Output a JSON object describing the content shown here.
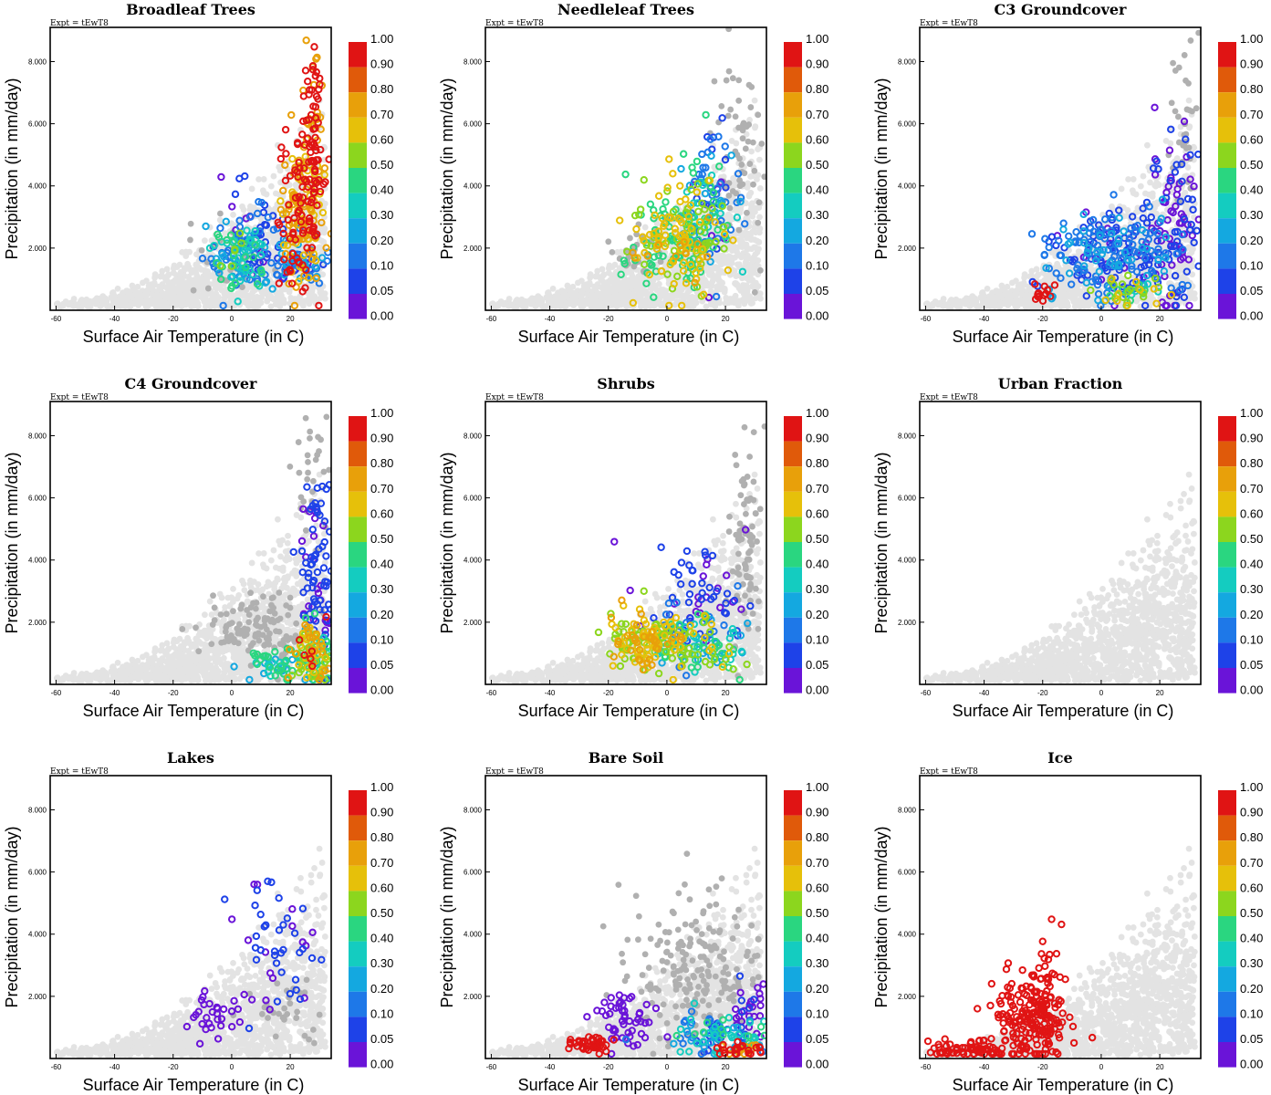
{
  "chart_data": {
    "type": "scatter",
    "expt_label": "Expt = tEwT8",
    "xlabel": "Surface Air Temperature (in C)",
    "ylabel": "Precipitation (in mm/day)",
    "xlim": [
      -62,
      34
    ],
    "ylim": [
      0,
      9.1
    ],
    "xticks": [
      -60,
      -40,
      -20,
      0,
      20
    ],
    "yticks": [
      2.0,
      4.0,
      6.0,
      8.0
    ],
    "ytick_labels": [
      "2.000",
      "4.000",
      "6.000",
      "8.000"
    ],
    "colorbar": {
      "levels": [
        "0.00",
        "0.05",
        "0.10",
        "0.20",
        "0.30",
        "0.40",
        "0.50",
        "0.60",
        "0.70",
        "0.80",
        "0.90",
        "1.00"
      ],
      "colors": [
        "#b4b4b4",
        "#6a14d8",
        "#1e42e8",
        "#1e78e8",
        "#14a8e0",
        "#14ccc0",
        "#2ad680",
        "#8cd61e",
        "#e6c00a",
        "#e8a00a",
        "#e05a0a",
        "#e01414"
      ]
    },
    "panels": [
      {
        "title": "Broadleaf Trees",
        "regions": [
          {
            "cx": 24,
            "cy": 3.2,
            "sx": 4,
            "sy": 1.3,
            "n": 210,
            "f": [
              0.72,
              1.0
            ]
          },
          {
            "cx": 28,
            "cy": 6.2,
            "sx": 2,
            "sy": 1.2,
            "n": 60,
            "f": [
              0.85,
              1.0
            ]
          },
          {
            "cx": 22,
            "cy": 1.6,
            "sx": 7,
            "sy": 0.4,
            "n": 70,
            "f": [
              0.08,
              0.4
            ]
          },
          {
            "cx": 3,
            "cy": 1.6,
            "sx": 5,
            "sy": 0.5,
            "n": 110,
            "f": [
              0.2,
              0.62
            ]
          },
          {
            "cx": 8,
            "cy": 2.6,
            "sx": 6,
            "sy": 0.8,
            "n": 50,
            "f": [
              0.05,
              0.3
            ]
          },
          {
            "cx": 0,
            "cy": 1.8,
            "sx": 6,
            "sy": 0.6,
            "n": 30,
            "f": [
              0.0,
              0.04
            ]
          }
        ]
      },
      {
        "title": "Needleleaf Trees",
        "regions": [
          {
            "cx": 3,
            "cy": 2.2,
            "sx": 7,
            "sy": 0.9,
            "n": 200,
            "f": [
              0.5,
              0.82
            ]
          },
          {
            "cx": 12,
            "cy": 3.2,
            "sx": 6,
            "sy": 1.0,
            "n": 80,
            "f": [
              0.25,
              0.78
            ]
          },
          {
            "cx": 16,
            "cy": 3.6,
            "sx": 4,
            "sy": 1.2,
            "n": 50,
            "f": [
              0.05,
              0.3
            ]
          },
          {
            "cx": 26,
            "cy": 4.8,
            "sx": 4,
            "sy": 1.6,
            "n": 60,
            "f": [
              0.0,
              0.04
            ]
          },
          {
            "cx": -10,
            "cy": 1.9,
            "sx": 4,
            "sy": 0.4,
            "n": 30,
            "f": [
              0.0,
              0.04
            ]
          }
        ]
      },
      {
        "title": "C3 Groundcover",
        "regions": [
          {
            "cx": 5,
            "cy": 1.8,
            "sx": 12,
            "sy": 0.7,
            "n": 270,
            "f": [
              0.08,
              0.35
            ]
          },
          {
            "cx": 24,
            "cy": 3.2,
            "sx": 5,
            "sy": 1.5,
            "n": 90,
            "f": [
              0.05,
              0.12
            ]
          },
          {
            "cx": 10,
            "cy": 0.55,
            "sx": 6,
            "sy": 0.25,
            "n": 40,
            "f": [
              0.4,
              0.82
            ]
          },
          {
            "cx": -20,
            "cy": 0.6,
            "sx": 2,
            "sy": 0.15,
            "n": 14,
            "f": [
              0.92,
              1.0
            ]
          },
          {
            "cx": 28,
            "cy": 5.5,
            "sx": 3,
            "sy": 1.5,
            "n": 40,
            "f": [
              0.0,
              0.04
            ]
          }
        ]
      },
      {
        "title": "C4 Groundcover",
        "regions": [
          {
            "cx": 28,
            "cy": 1.0,
            "sx": 4,
            "sy": 0.5,
            "n": 130,
            "f": [
              0.35,
              0.95
            ]
          },
          {
            "cx": 29,
            "cy": 3.5,
            "sx": 3,
            "sy": 1.6,
            "n": 90,
            "f": [
              0.05,
              0.2
            ]
          },
          {
            "cx": 15,
            "cy": 0.6,
            "sx": 6,
            "sy": 0.3,
            "n": 50,
            "f": [
              0.3,
              0.6
            ]
          },
          {
            "cx": 10,
            "cy": 1.8,
            "sx": 9,
            "sy": 0.6,
            "n": 120,
            "f": [
              0.0,
              0.04
            ]
          },
          {
            "cx": 27,
            "cy": 6.5,
            "sx": 3,
            "sy": 1.0,
            "n": 30,
            "f": [
              0.0,
              0.04
            ]
          }
        ]
      },
      {
        "title": "Shrubs",
        "regions": [
          {
            "cx": -8,
            "cy": 1.4,
            "sx": 6,
            "sy": 0.45,
            "n": 140,
            "f": [
              0.62,
              0.86
            ]
          },
          {
            "cx": 10,
            "cy": 1.2,
            "sx": 8,
            "sy": 0.5,
            "n": 130,
            "f": [
              0.25,
              0.75
            ]
          },
          {
            "cx": 10,
            "cy": 2.8,
            "sx": 8,
            "sy": 0.9,
            "n": 70,
            "f": [
              0.05,
              0.22
            ]
          },
          {
            "cx": 27,
            "cy": 4.5,
            "sx": 3,
            "sy": 1.6,
            "n": 80,
            "f": [
              0.0,
              0.04
            ]
          }
        ]
      },
      {
        "title": "Urban Fraction",
        "regions": []
      },
      {
        "title": "Lakes",
        "regions": [
          {
            "cx": -8,
            "cy": 1.4,
            "sx": 6,
            "sy": 0.35,
            "n": 30,
            "f": [
              0.05,
              0.1
            ]
          },
          {
            "cx": 15,
            "cy": 3.5,
            "sx": 8,
            "sy": 1.2,
            "n": 50,
            "f": [
              0.05,
              0.2
            ]
          },
          {
            "cx": 18,
            "cy": 1.5,
            "sx": 8,
            "sy": 0.5,
            "n": 30,
            "f": [
              0.0,
              0.04
            ]
          }
        ]
      },
      {
        "title": "Bare Soil",
        "regions": [
          {
            "cx": -26,
            "cy": 0.45,
            "sx": 4,
            "sy": 0.15,
            "n": 40,
            "f": [
              0.92,
              1.0
            ]
          },
          {
            "cx": -14,
            "cy": 1.2,
            "sx": 5,
            "sy": 0.5,
            "n": 50,
            "f": [
              0.05,
              0.1
            ]
          },
          {
            "cx": 17,
            "cy": 0.8,
            "sx": 8,
            "sy": 0.3,
            "n": 110,
            "f": [
              0.1,
              0.55
            ]
          },
          {
            "cx": 26,
            "cy": 0.3,
            "sx": 5,
            "sy": 0.12,
            "n": 40,
            "f": [
              0.85,
              1.0
            ]
          },
          {
            "cx": 10,
            "cy": 2.8,
            "sx": 12,
            "sy": 1.2,
            "n": 200,
            "f": [
              0.0,
              0.04
            ]
          },
          {
            "cx": 28,
            "cy": 1.5,
            "sx": 3,
            "sy": 0.5,
            "n": 30,
            "f": [
              0.05,
              0.12
            ]
          }
        ]
      },
      {
        "title": "Ice",
        "regions": [
          {
            "cx": -24,
            "cy": 1.2,
            "sx": 6,
            "sy": 0.7,
            "n": 200,
            "f": [
              0.92,
              1.0
            ]
          },
          {
            "cx": -45,
            "cy": 0.3,
            "sx": 8,
            "sy": 0.15,
            "n": 70,
            "f": [
              0.92,
              1.0
            ]
          },
          {
            "cx": -18,
            "cy": 3.0,
            "sx": 3,
            "sy": 0.9,
            "n": 20,
            "f": [
              0.92,
              1.0
            ]
          }
        ]
      }
    ]
  }
}
